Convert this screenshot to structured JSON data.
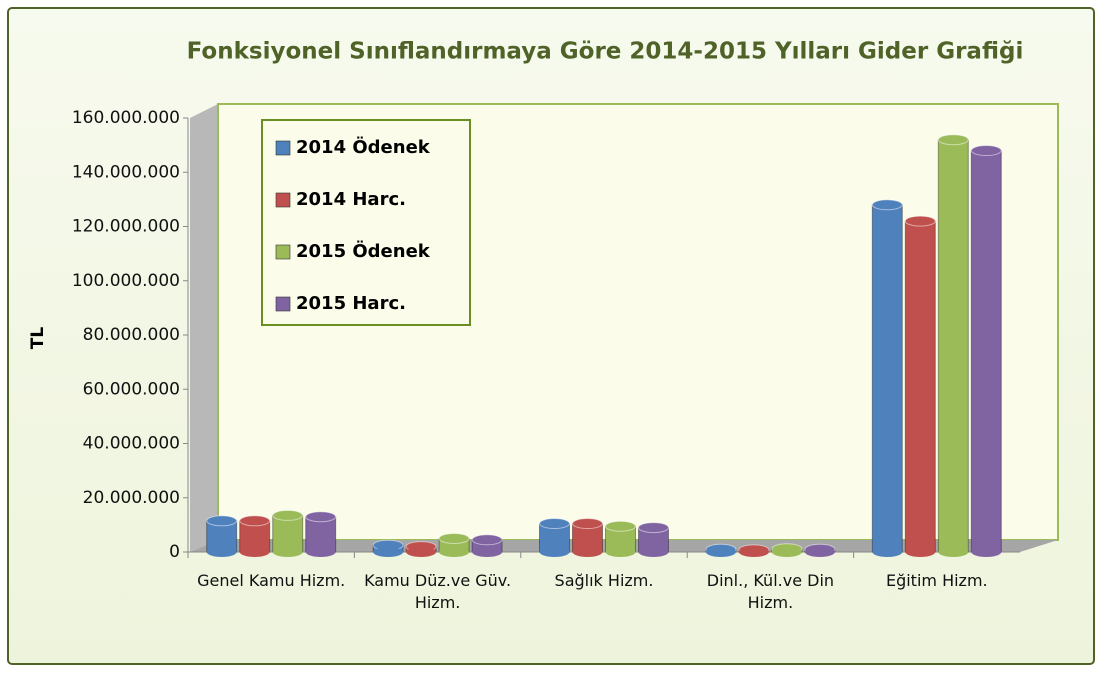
{
  "chart_data": {
    "type": "bar",
    "title": "Fonksiyonel Sınıflandırmaya Göre 2014-2015 Yılları Gider Grafiği",
    "y_label": "TL",
    "categories": [
      "Genel Kamu Hizm.",
      "Kamu Düz.ve Güv. Hizm.",
      "Sağlık Hizm.",
      "Dinl., Kül.ve Din Hizm.",
      "Eğitim Hizm."
    ],
    "series": [
      {
        "name": "2014 Ödenek",
        "color": "#4f81bd",
        "values": [
          11500000,
          2500000,
          10500000,
          1000000,
          128000000
        ]
      },
      {
        "name": "2014 Harc.",
        "color": "#c0504d",
        "values": [
          11500000,
          2000000,
          10500000,
          800000,
          122000000
        ]
      },
      {
        "name": "2015 Ödenek",
        "color": "#9bbb59",
        "values": [
          13500000,
          5000000,
          9500000,
          1200000,
          152000000
        ]
      },
      {
        "name": "2015 Harc.",
        "color": "#8064a2",
        "values": [
          13000000,
          4500000,
          9000000,
          1000000,
          148000000
        ]
      }
    ],
    "ylim": [
      0,
      160000000
    ],
    "yticks": [
      0,
      {
        "value": 20000000,
        "label": "20.000.000"
      },
      {
        "value": 40000000,
        "label": "40.000.000"
      },
      {
        "value": 60000000,
        "label": "60.000.000"
      },
      {
        "value": 80000000,
        "label": "80.000.000"
      },
      {
        "value": 100000000,
        "label": "100.000.000"
      },
      {
        "value": 120000000,
        "label": "120.000.000"
      },
      {
        "value": 140000000,
        "label": "140.000.000"
      },
      {
        "value": 160000000,
        "label": "160.000.000"
      }
    ],
    "legend": "top-left"
  }
}
